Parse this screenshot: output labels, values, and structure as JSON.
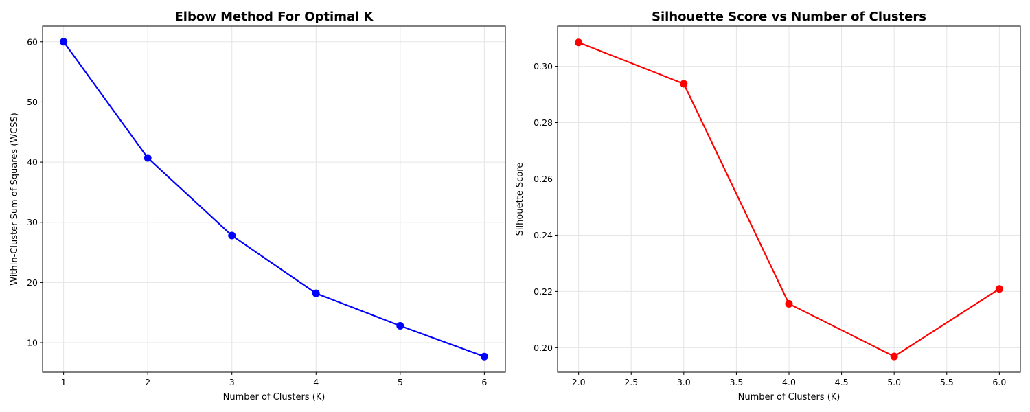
{
  "chart_data": [
    {
      "type": "line",
      "title": "Elbow Method For Optimal K",
      "xlabel": "Number of Clusters (K)",
      "ylabel": "Within-Cluster Sum of Squares (WCSS)",
      "x": [
        1,
        2,
        3,
        4,
        5,
        6
      ],
      "series": [
        {
          "values": [
            60.0,
            40.7,
            27.8,
            18.2,
            12.8,
            7.7
          ],
          "color": "#0000ff",
          "marker": "circle"
        }
      ],
      "xlim": [
        0.75,
        6.25
      ],
      "ylim": [
        5.1,
        62.6
      ],
      "xticks": [
        1,
        2,
        3,
        4,
        5,
        6
      ],
      "xtick_labels": [
        "1",
        "2",
        "3",
        "4",
        "5",
        "6"
      ],
      "yticks": [
        10,
        20,
        30,
        40,
        50,
        60
      ],
      "ytick_labels": [
        "10",
        "20",
        "30",
        "40",
        "50",
        "60"
      ],
      "grid": true
    },
    {
      "type": "line",
      "title": "Silhouette Score vs Number of Clusters",
      "xlabel": "Number of Clusters (K)",
      "ylabel": "Silhouette Score",
      "x": [
        2,
        3,
        4,
        5,
        6
      ],
      "series": [
        {
          "values": [
            0.3085,
            0.2938,
            0.2156,
            0.1969,
            0.2209
          ],
          "color": "#ff0000",
          "marker": "circle"
        }
      ],
      "xlim": [
        1.8,
        6.2
      ],
      "ylim": [
        0.1913,
        0.3143
      ],
      "xticks": [
        2.0,
        2.5,
        3.0,
        3.5,
        4.0,
        4.5,
        5.0,
        5.5,
        6.0
      ],
      "xtick_labels": [
        "2.0",
        "2.5",
        "3.0",
        "3.5",
        "4.0",
        "4.5",
        "5.0",
        "5.5",
        "6.0"
      ],
      "yticks": [
        0.2,
        0.22,
        0.24,
        0.26,
        0.28,
        0.3
      ],
      "ytick_labels": [
        "0.20",
        "0.22",
        "0.24",
        "0.26",
        "0.28",
        "0.30"
      ],
      "grid": true
    }
  ]
}
